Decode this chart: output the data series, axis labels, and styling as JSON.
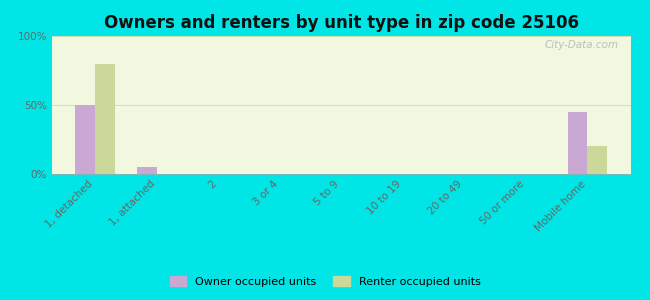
{
  "title": "Owners and renters by unit type in zip code 25106",
  "categories": [
    "1, detached",
    "1, attached",
    "2",
    "3 or 4",
    "5 to 9",
    "10 to 19",
    "20 to 49",
    "50 or more",
    "Mobile home"
  ],
  "owner_values": [
    50,
    5,
    0,
    0,
    0,
    0,
    0,
    0,
    45
  ],
  "renter_values": [
    80,
    0,
    0,
    0,
    0,
    0,
    0,
    0,
    20
  ],
  "owner_color": "#c9a8d4",
  "renter_color": "#ccd89a",
  "figure_bg_color": "#00e5e5",
  "plot_bg_color": "#f2f7e0",
  "ylim": [
    0,
    100
  ],
  "yticks": [
    0,
    50,
    100
  ],
  "ytick_labels": [
    "0%",
    "50%",
    "100%"
  ],
  "bar_width": 0.32,
  "title_fontsize": 12,
  "tick_fontsize": 7.5,
  "legend_owner": "Owner occupied units",
  "legend_renter": "Renter occupied units",
  "watermark": "City-Data.com"
}
